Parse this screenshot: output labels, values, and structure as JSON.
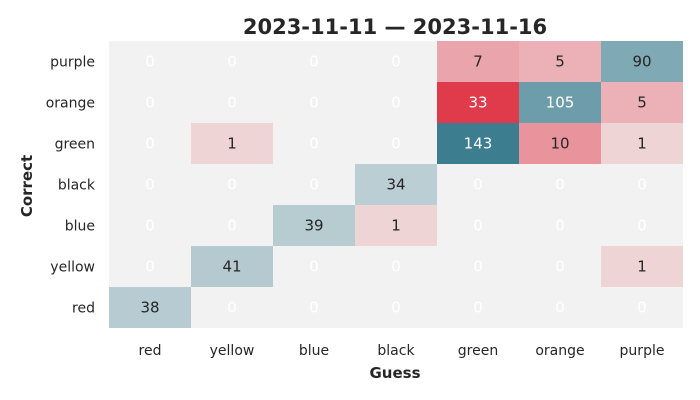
{
  "chart_data": {
    "type": "heatmap",
    "title": "2023-11-11 — 2023-11-16",
    "xlabel": "Guess",
    "ylabel": "Correct",
    "x_categories": [
      "red",
      "yellow",
      "blue",
      "black",
      "green",
      "orange",
      "purple"
    ],
    "y_categories": [
      "purple",
      "orange",
      "green",
      "black",
      "blue",
      "yellow",
      "red"
    ],
    "values": [
      [
        0,
        0,
        0,
        0,
        7,
        5,
        90
      ],
      [
        0,
        0,
        0,
        0,
        33,
        105,
        5
      ],
      [
        0,
        1,
        0,
        0,
        143,
        10,
        1
      ],
      [
        0,
        0,
        0,
        34,
        0,
        0,
        0
      ],
      [
        0,
        0,
        39,
        1,
        0,
        0,
        0
      ],
      [
        0,
        41,
        0,
        0,
        0,
        0,
        1
      ],
      [
        38,
        0,
        0,
        0,
        0,
        0,
        0
      ]
    ],
    "colormap": "diverging-teal-red",
    "colors": {
      "zero": "#f2f2f2",
      "teal_dark": "#3c7e8f",
      "red_strong": "#e03b4a"
    },
    "grid": false,
    "colorbar": false
  }
}
